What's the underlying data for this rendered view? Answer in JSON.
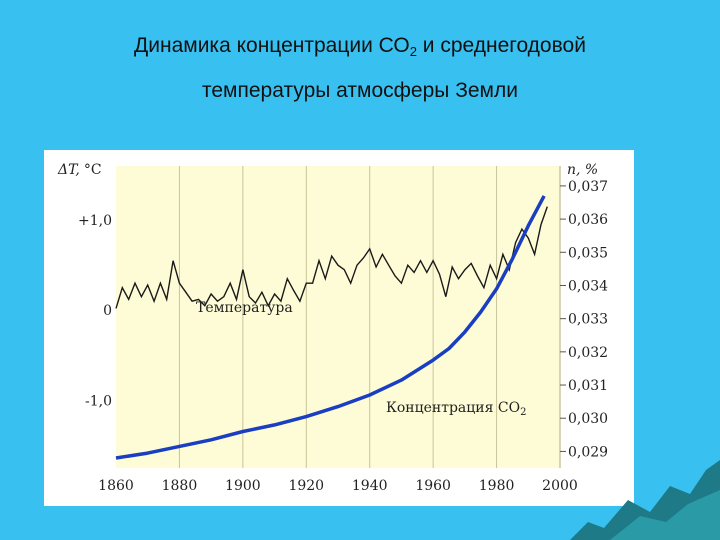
{
  "slide": {
    "title_line1_a": "Динамика концентрации СО",
    "title_line1_sub": "2",
    "title_line1_b": " и среднегодовой",
    "title_line2": "температуры атмосферы Земли"
  },
  "colors": {
    "background": "#38c0f0",
    "plot_fill": "#fdfcd6",
    "co2_line": "#1a3ec2",
    "temperature_line": "#1a1a1a",
    "grid": "#c9c39a"
  },
  "chart_data": {
    "type": "line",
    "x": {
      "range": [
        1860,
        2000
      ],
      "ticks": [
        1860,
        1880,
        1900,
        1920,
        1940,
        1960,
        1980,
        2000
      ],
      "tick_labels": [
        "1860",
        "1880",
        "1900",
        "1920",
        "1940",
        "1960",
        "1980",
        "2000"
      ],
      "grid": true
    },
    "y_left": {
      "label_symbol": "ΔT,",
      "label_unit": "°C",
      "range": [
        -1.75,
        1.6
      ],
      "ticks": [
        1.0,
        0,
        -1.0
      ],
      "tick_labels": [
        "+1,0",
        "0",
        "-1,0"
      ]
    },
    "y_right": {
      "label": "n, %",
      "range": [
        0.0285,
        0.0376
      ],
      "ticks": [
        0.029,
        0.03,
        0.031,
        0.032,
        0.033,
        0.034,
        0.035,
        0.036,
        0.037
      ],
      "tick_labels": [
        "0,029",
        "0,030",
        "0,031",
        "0,032",
        "0,033",
        "0,034",
        "0,035",
        "0,036",
        "0,037"
      ]
    },
    "series": [
      {
        "name": "Температура",
        "axis": "left",
        "x": [
          1860,
          1862,
          1864,
          1866,
          1868,
          1870,
          1872,
          1874,
          1876,
          1878,
          1880,
          1882,
          1884,
          1886,
          1888,
          1890,
          1892,
          1894,
          1896,
          1898,
          1900,
          1902,
          1904,
          1906,
          1908,
          1910,
          1912,
          1914,
          1916,
          1918,
          1920,
          1922,
          1924,
          1926,
          1928,
          1930,
          1932,
          1934,
          1936,
          1938,
          1940,
          1942,
          1944,
          1946,
          1948,
          1950,
          1952,
          1954,
          1956,
          1958,
          1960,
          1962,
          1964,
          1966,
          1968,
          1970,
          1972,
          1974,
          1976,
          1978,
          1980,
          1982,
          1984,
          1986,
          1988,
          1990,
          1992,
          1994,
          1996
        ],
        "values": [
          0.02,
          0.25,
          0.12,
          0.3,
          0.15,
          0.28,
          0.1,
          0.3,
          0.12,
          0.55,
          0.3,
          0.2,
          0.1,
          0.12,
          0.05,
          0.18,
          0.1,
          0.15,
          0.3,
          0.12,
          0.45,
          0.15,
          0.08,
          0.2,
          0.05,
          0.18,
          0.1,
          0.35,
          0.22,
          0.1,
          0.3,
          0.3,
          0.55,
          0.35,
          0.6,
          0.5,
          0.45,
          0.3,
          0.5,
          0.58,
          0.68,
          0.48,
          0.62,
          0.5,
          0.38,
          0.3,
          0.5,
          0.42,
          0.55,
          0.42,
          0.55,
          0.4,
          0.15,
          0.48,
          0.35,
          0.45,
          0.52,
          0.38,
          0.25,
          0.5,
          0.35,
          0.62,
          0.45,
          0.75,
          0.9,
          0.8,
          0.62,
          0.95,
          1.15
        ]
      },
      {
        "name": "Концентрация СО2",
        "axis": "right",
        "x": [
          1860,
          1870,
          1880,
          1890,
          1900,
          1910,
          1920,
          1930,
          1940,
          1950,
          1960,
          1965,
          1970,
          1975,
          1980,
          1985,
          1990,
          1995
        ],
        "values": [
          0.0288,
          0.02895,
          0.02915,
          0.02935,
          0.0296,
          0.0298,
          0.03005,
          0.03035,
          0.0307,
          0.03115,
          0.03175,
          0.0321,
          0.0326,
          0.0332,
          0.0339,
          0.0348,
          0.0358,
          0.0367
        ]
      }
    ],
    "annotations": [
      {
        "text": "Температура",
        "series": "Температура"
      },
      {
        "text_a": "Концентрация СО",
        "text_sub": "2",
        "series": "Концентрация СО2"
      }
    ]
  }
}
